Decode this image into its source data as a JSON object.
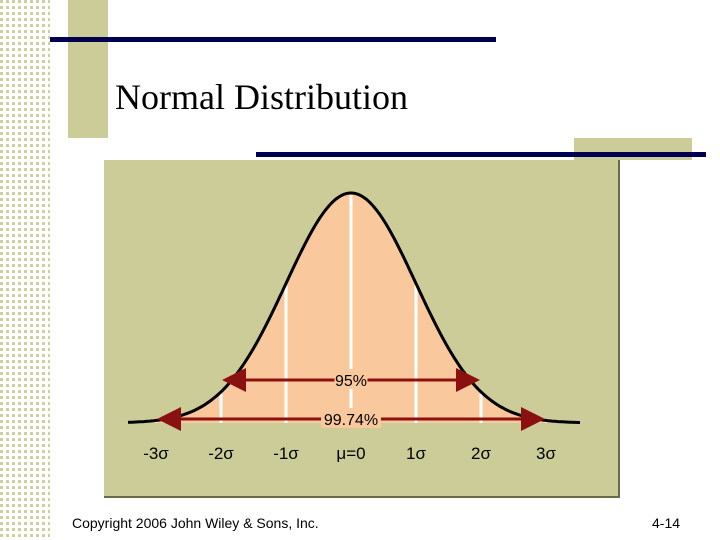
{
  "slide": {
    "title": "Normal Distribution",
    "footer": "Copyright 2006 John Wiley & Sons, Inc.",
    "page_number": "4-14"
  },
  "colors": {
    "bar": "#000050",
    "accent_block": "#cccc99",
    "curve_fill": "#f9c89d",
    "arrow": "#8b1010"
  },
  "diagram": {
    "axis_labels": [
      {
        "sigma": -3,
        "text": "-3σ"
      },
      {
        "sigma": -2,
        "text": "-2σ"
      },
      {
        "sigma": -1,
        "text": "-1σ"
      },
      {
        "sigma": 0,
        "text": "μ=0"
      },
      {
        "sigma": 1,
        "text": "1σ"
      },
      {
        "sigma": 2,
        "text": "2σ"
      },
      {
        "sigma": 3,
        "text": "3σ"
      }
    ],
    "intervals": [
      {
        "label": "95%",
        "from": -2,
        "to": 2
      },
      {
        "label": "99.74%",
        "from": -3,
        "to": 3
      }
    ]
  }
}
